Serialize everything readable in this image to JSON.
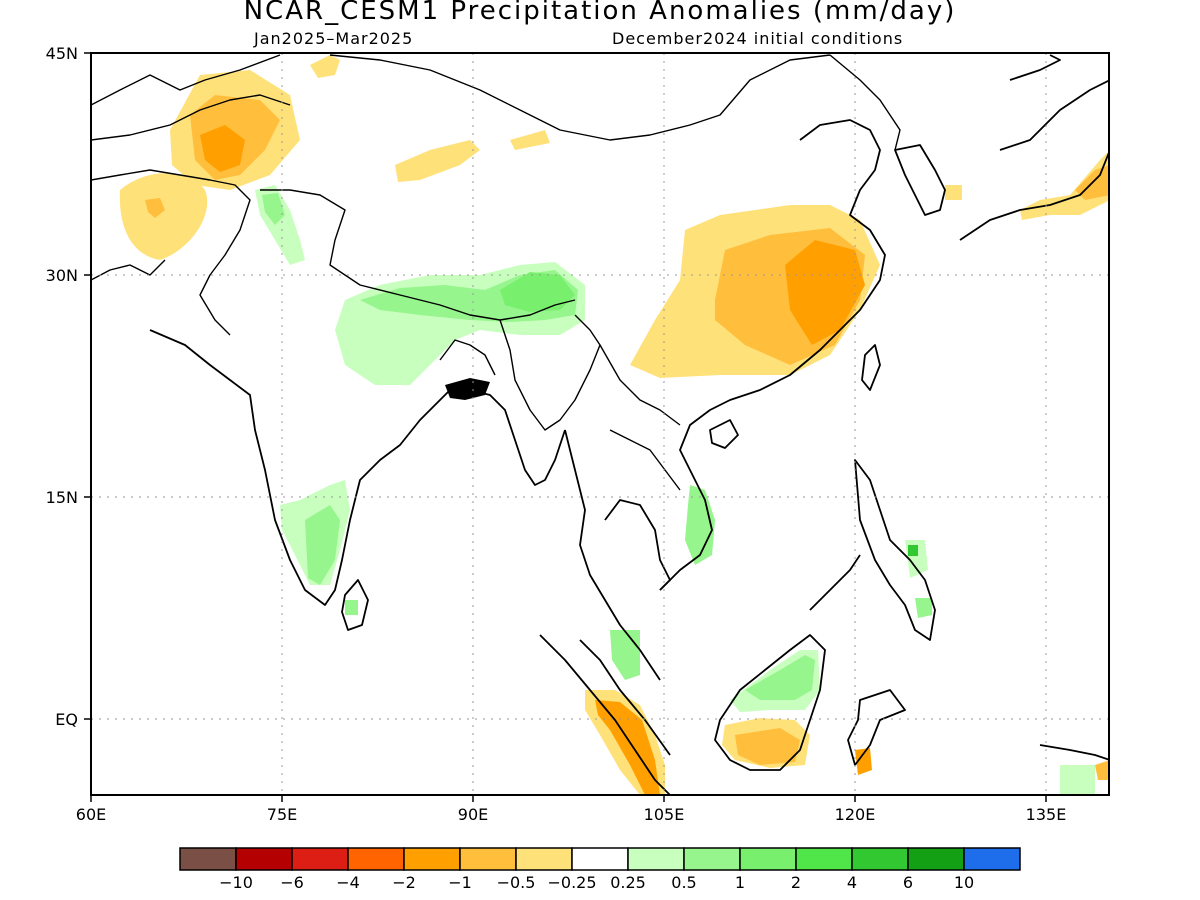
{
  "title": "NCAR_CESM1 Precipitation Anomalies (mm/day)",
  "subtitle_left": "Jan2025–Mar2025",
  "subtitle_right": "December2024 initial conditions",
  "lat_labels": [
    "45N",
    "30N",
    "15N",
    "EQ"
  ],
  "lon_labels": [
    "60E",
    "75E",
    "90E",
    "105E",
    "120E",
    "135E"
  ],
  "colorbar": {
    "colors": [
      "#7a5046",
      "#b40000",
      "#dc1e14",
      "#ff6400",
      "#ffa000",
      "#ffbe3c",
      "#ffe17a",
      "#ffffff",
      "#c8ffbe",
      "#96f58c",
      "#78f06e",
      "#50e64a",
      "#32c832",
      "#14a014",
      "#1e6eeb"
    ],
    "tick_labels": [
      "−10",
      "−6",
      "−4",
      "−2",
      "−1",
      "−0.5",
      "−0.25",
      "0.25",
      "0.5",
      "1",
      "2",
      "4",
      "6",
      "10"
    ]
  }
}
